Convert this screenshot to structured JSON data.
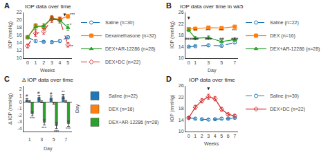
{
  "chart_data": [
    {
      "type": "line",
      "panel_label": "A",
      "title": "IOP data over time",
      "xlabel": "Weeks",
      "ylabel": "IOP (mmHg)",
      "xlim": [
        -0.5,
        5.5
      ],
      "xticks": [
        0,
        1,
        2,
        3,
        4,
        5
      ],
      "ylim": [
        10,
        22
      ],
      "yticks": [
        10,
        12,
        14,
        16,
        18,
        20,
        22
      ],
      "grid": false,
      "legend": "right",
      "series": [
        {
          "name": "Saline (n=30)",
          "color": "#1f77b4",
          "marker": "circle-open",
          "line_style": "dash",
          "x": [
            0,
            1,
            2,
            3,
            4,
            5
          ],
          "values": [
            15.5,
            14.5,
            14.3,
            14.2,
            14.5,
            15.5
          ],
          "errors": [
            0.4,
            0.3,
            0.3,
            0.3,
            0.3,
            0.4
          ]
        },
        {
          "name": "Dexamethasone (n=32)",
          "color": "#ff7f0e",
          "marker": "square",
          "line_style": "solid",
          "x": [
            0,
            1,
            2,
            3,
            4,
            5
          ],
          "values": [
            15.5,
            18.5,
            18.2,
            20.5,
            20.2,
            21.0
          ],
          "errors": [
            0.4,
            0.6,
            0.5,
            0.6,
            0.6,
            0.5
          ]
        },
        {
          "name": "DEX+AR-12286 (n=28)",
          "color": "#2ca02c",
          "marker": "triangle-up",
          "line_style": "solid",
          "x": [
            0,
            1,
            2,
            3,
            4,
            5
          ],
          "values": [
            15.5,
            18.2,
            18.5,
            20.5,
            20.0,
            18.0
          ],
          "errors": [
            0.4,
            0.7,
            0.6,
            0.7,
            0.7,
            0.8
          ]
        },
        {
          "name": "DEX+DC (n=22)",
          "color": "#d62728",
          "marker": "diamond-open",
          "line_style": "dash",
          "x": [
            0,
            1,
            2,
            3,
            4,
            5
          ],
          "values": [
            13.2,
            16.5,
            17.0,
            20.2,
            20.0,
            13.5
          ],
          "errors": [
            0.5,
            0.8,
            0.7,
            0.8,
            0.8,
            0.6
          ]
        }
      ],
      "annotations": [
        {
          "text": "***",
          "x": 5,
          "y": 21.5
        },
        {
          "text": "*",
          "x": 5,
          "y": 18.8
        },
        {
          "text": "**",
          "x": 5,
          "y": 13.1
        }
      ],
      "arrows": [
        {
          "x": 4.6,
          "y_from": 21.8,
          "y_to": 21.0
        }
      ]
    },
    {
      "type": "line",
      "panel_label": "B",
      "title": "IOP data over time in wk5",
      "xlabel": "Day",
      "ylabel": "IOP (mmHg)",
      "xlim": [
        -0.5,
        7.5
      ],
      "xticks": [
        0,
        1,
        3,
        5,
        7
      ],
      "ylim": [
        10,
        26
      ],
      "yticks": [
        10,
        14,
        18,
        22,
        26
      ],
      "grid": false,
      "legend": "right",
      "series": [
        {
          "name": "Saline (n=22)",
          "color": "#1f77b4",
          "marker": "circle-open",
          "line_style": "dash",
          "x": [
            0,
            1,
            3,
            5,
            7
          ],
          "values": [
            14.0,
            14.2,
            14.5,
            14.3,
            15.5
          ],
          "errors": [
            0.3,
            0.3,
            0.4,
            0.3,
            0.5
          ]
        },
        {
          "name": "DEX (n=16)",
          "color": "#ff7f0e",
          "marker": "square",
          "line_style": "solid",
          "x": [
            0,
            1,
            3,
            5,
            7
          ],
          "values": [
            20.2,
            20.3,
            20.7,
            20.5,
            21.0
          ],
          "errors": [
            0.5,
            0.4,
            0.5,
            0.5,
            0.5
          ]
        },
        {
          "name": "DEX+AR-12286 (n=28)",
          "color": "#2ca02c",
          "marker": "triangle-up",
          "line_style": "solid",
          "x": [
            0,
            1,
            3,
            5,
            7
          ],
          "values": [
            19.8,
            17.0,
            17.2,
            15.8,
            16.5
          ],
          "errors": [
            0.5,
            0.6,
            0.6,
            0.5,
            0.6
          ]
        }
      ],
      "stars": [
        {
          "text": "**",
          "x": 1,
          "y": 18.7
        },
        {
          "text": "***",
          "x": 3,
          "y": 18.7
        },
        {
          "text": "***",
          "x": 5,
          "y": 18.7
        },
        {
          "text": "***",
          "x": 7,
          "y": 18.7
        }
      ],
      "hashes": [
        {
          "text": "###",
          "x": 0,
          "y": 17.8
        },
        {
          "text": "###",
          "x": 1,
          "y": 17.8
        },
        {
          "text": "###",
          "x": 3,
          "y": 17.8
        },
        {
          "text": "##",
          "x": 5,
          "y": 17.8
        },
        {
          "text": "###",
          "x": 7,
          "y": 17.8
        }
      ],
      "arrows": [
        {
          "x": 0,
          "y_from": 24.5,
          "y_to": 23.5
        }
      ]
    },
    {
      "type": "bar",
      "panel_label": "C",
      "title": "Δ IOP data over time",
      "xlabel": "Day",
      "ylabel": "Δ IOP (mmHg)",
      "right_label": "Day",
      "categories": [
        "1",
        "3",
        "5",
        "7"
      ],
      "ylim": [
        -4.5,
        2.5
      ],
      "yticks": [
        -4,
        -3,
        -2,
        -1,
        0,
        1,
        2
      ],
      "grid": false,
      "legend": "right",
      "series": [
        {
          "name": "Saline (n=22)",
          "color": "#1f77b4",
          "values": [
            0.35,
            0.75,
            0.65,
            0.85
          ],
          "errors": [
            0.2,
            0.3,
            0.3,
            0.3
          ],
          "sig_labels": [
            "#",
            "#",
            "#",
            "**"
          ]
        },
        {
          "name": "DEX (n=16)",
          "color": "#ff7f0e",
          "values": [
            0.1,
            0.05,
            -0.15,
            0.1
          ],
          "errors": [
            0.15,
            0.15,
            0.15,
            0.15
          ]
        },
        {
          "name": "DEX+AR-12286 (n=28)",
          "color": "#2ca02c",
          "values": [
            -1.8,
            -3.1,
            -3.6,
            -3.3
          ],
          "errors": [
            0.3,
            0.4,
            0.45,
            0.4
          ],
          "sig_labels": [
            "***",
            "***",
            "***",
            "***"
          ]
        }
      ]
    },
    {
      "type": "line",
      "panel_label": "D",
      "title": "IOP data over time",
      "xlabel": "Weeks",
      "ylabel": "IOP (mmHg)",
      "xlim": [
        -0.5,
        7.5
      ],
      "xticks": [
        0,
        1,
        2,
        3,
        4,
        5,
        6,
        7
      ],
      "ylim": [
        10,
        26
      ],
      "yticks": [
        10,
        14,
        18,
        22,
        26
      ],
      "grid": false,
      "legend": "right",
      "series": [
        {
          "name": "Saline (n=30)",
          "color": "#1f77b4",
          "marker": "circle-open",
          "line_style": "dash",
          "x": [
            0,
            1,
            2,
            3,
            4,
            5,
            6,
            7
          ],
          "values": [
            14.8,
            14.5,
            14.3,
            14.2,
            14.3,
            14.5,
            14.5,
            14.8
          ],
          "errors": [
            0.3,
            0.3,
            0.3,
            0.3,
            0.3,
            0.3,
            0.3,
            0.3
          ]
        },
        {
          "name": "DEX+DC (n=22)",
          "color": "#d62728",
          "marker": "diamond-open",
          "line_style": "solid",
          "x": [
            0,
            1,
            2,
            3,
            4,
            5,
            6,
            7
          ],
          "values": [
            14.8,
            18.5,
            20.8,
            22.2,
            21.5,
            17.8,
            16.0,
            15.5
          ],
          "errors": [
            0.4,
            0.7,
            0.8,
            0.9,
            0.8,
            0.7,
            0.5,
            0.5
          ]
        }
      ],
      "arrows": [
        {
          "x": 3,
          "y_from": 25.5,
          "y_to": 24.5
        }
      ]
    }
  ]
}
